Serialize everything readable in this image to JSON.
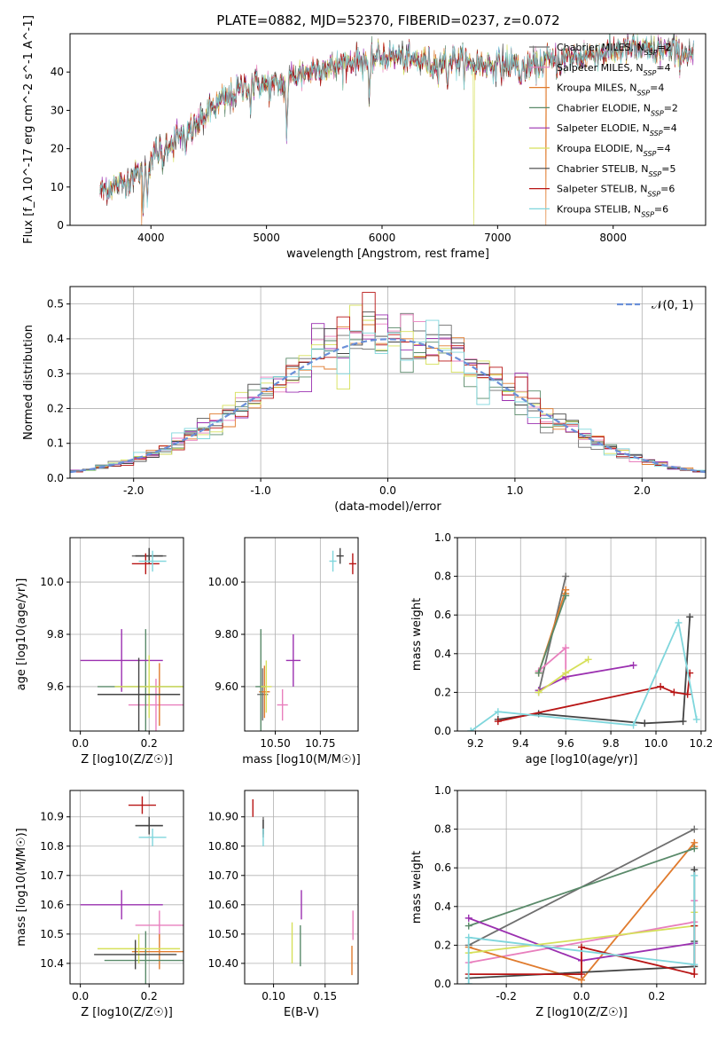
{
  "figure_title": "PLATE=0882, MJD=52370, FIBERID=0237, z=0.072",
  "models": [
    {
      "name": "Chabrier MILES, N",
      "sub": "SSP",
      "tail": "=2",
      "color": "#6f6f6f"
    },
    {
      "name": "Salpeter MILES, N",
      "sub": "SSP",
      "tail": "=4",
      "color": "#e87fbd"
    },
    {
      "name": "Kroupa MILES, N",
      "sub": "SSP",
      "tail": "=4",
      "color": "#e07b2e"
    },
    {
      "name": "Chabrier ELODIE, N",
      "sub": "SSP",
      "tail": "=2",
      "color": "#5a8a6a"
    },
    {
      "name": "Salpeter ELODIE, N",
      "sub": "SSP",
      "tail": "=4",
      "color": "#9b30b0"
    },
    {
      "name": "Kroupa ELODIE, N",
      "sub": "SSP",
      "tail": "=4",
      "color": "#d6e05a"
    },
    {
      "name": "Chabrier STELIB, N",
      "sub": "SSP",
      "tail": "=5",
      "color": "#444444"
    },
    {
      "name": "Salpeter STELIB, N",
      "sub": "SSP",
      "tail": "=6",
      "color": "#b81414"
    },
    {
      "name": "Kroupa STELIB, N",
      "sub": "SSP",
      "tail": "=6",
      "color": "#7fd6dc"
    }
  ],
  "chart_data": [
    {
      "id": "spectrum",
      "type": "line",
      "xlabel": "wavelength [Angstrom, rest frame]",
      "ylabel": "Flux [f_λ 10^-17 erg cm^-2 s^-1 A^-1]",
      "xlim": [
        3300,
        8800
      ],
      "ylim": [
        0,
        50
      ],
      "xticks": [
        4000,
        5000,
        6000,
        7000,
        8000
      ],
      "yticks": [
        0,
        10,
        20,
        30,
        40
      ],
      "grid": false,
      "legend": "right",
      "continuum": {
        "x": [
          3560,
          3650,
          3750,
          3850,
          3950,
          4050,
          4150,
          4250,
          4350,
          4450,
          4550,
          4650,
          4750,
          4850,
          4950,
          5050,
          5150,
          5250,
          5350,
          5450,
          5550,
          5650,
          5750,
          5850,
          5950,
          6050,
          6150,
          6250,
          6350,
          6450,
          6550,
          6650,
          6750,
          6850,
          6950,
          7050,
          7150,
          7250,
          7350,
          7450,
          7550,
          7650,
          7750,
          7850,
          7950,
          8050,
          8150,
          8250,
          8350,
          8450,
          8550,
          8650,
          8700
        ],
        "y": [
          9,
          10,
          11,
          13,
          15,
          19,
          21,
          23,
          25,
          28,
          31,
          33,
          35,
          37,
          37,
          36,
          37,
          39,
          40,
          41,
          41,
          42,
          43,
          43,
          44,
          44,
          44,
          43,
          43,
          42,
          43,
          43,
          42,
          42,
          42,
          42,
          42,
          41,
          42,
          43,
          43,
          44,
          44,
          45,
          45,
          46,
          46,
          46,
          45,
          46,
          45,
          45,
          45
        ]
      },
      "absorption_lines": [
        {
          "x": 3933,
          "depth": 0.6
        },
        {
          "x": 3968,
          "depth": 0.5
        },
        {
          "x": 4101,
          "depth": 0.25
        },
        {
          "x": 4300,
          "depth": 0.3
        },
        {
          "x": 4861,
          "depth": 0.15
        },
        {
          "x": 5175,
          "depth": 0.35
        },
        {
          "x": 5890,
          "depth": 0.3
        },
        {
          "x": 6563,
          "depth": 0.15
        },
        {
          "x": 7200,
          "depth": 0.12
        }
      ],
      "spikes": [
        {
          "x": 3920,
          "series": 2
        },
        {
          "x": 6795,
          "series": 5
        },
        {
          "x": 7420,
          "series": 2
        }
      ]
    },
    {
      "id": "residuals",
      "type": "line",
      "xlabel": "(data-model)/error",
      "ylabel": "Normed distribution",
      "xlim": [
        -2.5,
        2.5
      ],
      "ylim": [
        0,
        0.55
      ],
      "xticks": [
        -2,
        -1,
        0,
        1,
        2
      ],
      "yticks": [
        0,
        0.1,
        0.2,
        0.3,
        0.4,
        0.5
      ],
      "grid": true,
      "legend": "top-right",
      "gaussian_label": "𝒩(0, 1)",
      "gaussian_color": "#6a8fd8",
      "bin_width": 0.1
    },
    {
      "id": "age-z",
      "type": "scatter",
      "xlabel": "Z [log10(Z/Z☉)]",
      "ylabel": "age [log10(age/yr)]",
      "xlim": [
        -0.03,
        0.3
      ],
      "ylim": [
        9.43,
        10.17
      ],
      "xticks": [
        0.0,
        0.2
      ],
      "yticks": [
        9.6,
        9.8,
        10.0
      ],
      "grid": true,
      "points": [
        {
          "x": 0.2,
          "y": 10.1,
          "ex": 0.05,
          "ey": 0.03,
          "series": 0
        },
        {
          "x": 0.22,
          "y": 9.53,
          "ex": 0.08,
          "ey": 0.1,
          "series": 1
        },
        {
          "x": 0.23,
          "y": 9.57,
          "ex": 0.06,
          "ey": 0.12,
          "series": 2
        },
        {
          "x": 0.19,
          "y": 9.6,
          "ex": 0.14,
          "ey": 0.22,
          "series": 3
        },
        {
          "x": 0.12,
          "y": 9.7,
          "ex": 0.12,
          "ey": 0.12,
          "series": 4
        },
        {
          "x": 0.2,
          "y": 9.6,
          "ex": 0.1,
          "ey": 0.12,
          "series": 5
        },
        {
          "x": 0.2,
          "y": 10.1,
          "ex": 0.04,
          "ey": 0.03,
          "series": 6
        },
        {
          "x": 0.19,
          "y": 10.07,
          "ex": 0.04,
          "ey": 0.04,
          "series": 7
        },
        {
          "x": 0.21,
          "y": 10.08,
          "ex": 0.04,
          "ey": 0.04,
          "series": 8
        },
        {
          "x": 0.17,
          "y": 9.57,
          "ex": 0.12,
          "ey": 0.14,
          "series": 6
        }
      ]
    },
    {
      "id": "age-mass",
      "type": "scatter",
      "xlabel": "mass [log10(M/M☉)]",
      "ylabel": "",
      "xlim": [
        10.33,
        10.96
      ],
      "ylim": [
        9.43,
        10.17
      ],
      "xticks": [
        10.5,
        10.75
      ],
      "yticks": [
        9.6,
        9.8,
        10.0
      ],
      "grid": true,
      "points": [
        {
          "x": 10.43,
          "y": 9.57,
          "ex": 0.03,
          "ey": 0.1,
          "series": 0
        },
        {
          "x": 10.54,
          "y": 9.53,
          "ex": 0.03,
          "ey": 0.06,
          "series": 1
        },
        {
          "x": 10.44,
          "y": 9.58,
          "ex": 0.03,
          "ey": 0.1,
          "series": 2
        },
        {
          "x": 10.42,
          "y": 9.6,
          "ex": 0.03,
          "ey": 0.22,
          "series": 3
        },
        {
          "x": 10.6,
          "y": 9.7,
          "ex": 0.04,
          "ey": 0.1,
          "series": 4
        },
        {
          "x": 10.45,
          "y": 9.6,
          "ex": 0.03,
          "ey": 0.1,
          "series": 5
        },
        {
          "x": 10.86,
          "y": 10.1,
          "ex": 0.02,
          "ey": 0.03,
          "series": 6
        },
        {
          "x": 10.93,
          "y": 10.07,
          "ex": 0.02,
          "ey": 0.04,
          "series": 7
        },
        {
          "x": 10.82,
          "y": 10.08,
          "ex": 0.02,
          "ey": 0.04,
          "series": 8
        }
      ]
    },
    {
      "id": "weight-age",
      "type": "line",
      "xlabel": "age [log10(age/yr)]",
      "ylabel": "mass weight",
      "xlim": [
        9.12,
        10.22
      ],
      "ylim": [
        0,
        1.0
      ],
      "xticks": [
        9.2,
        9.4,
        9.6,
        9.8,
        10.0,
        10.2
      ],
      "yticks": [
        0.0,
        0.2,
        0.4,
        0.6,
        0.8,
        1.0
      ],
      "grid": true,
      "series": [
        {
          "series": 0,
          "x": [
            9.48,
            9.6
          ],
          "y": [
            0.2,
            0.8
          ]
        },
        {
          "series": 1,
          "x": [
            9.48,
            9.6,
            9.6
          ],
          "y": [
            0.31,
            0.43,
            0.27
          ]
        },
        {
          "series": 2,
          "x": [
            9.48,
            9.6,
            9.6
          ],
          "y": [
            0.3,
            0.73,
            0.71
          ]
        },
        {
          "series": 3,
          "x": [
            9.48,
            9.6
          ],
          "y": [
            0.3,
            0.7
          ]
        },
        {
          "series": 4,
          "x": [
            9.48,
            9.6,
            9.9
          ],
          "y": [
            0.21,
            0.28,
            0.34
          ]
        },
        {
          "series": 5,
          "x": [
            9.48,
            9.6,
            9.7
          ],
          "y": [
            0.2,
            0.3,
            0.37
          ]
        },
        {
          "series": 6,
          "x": [
            9.3,
            9.48,
            9.95,
            10.12,
            10.15
          ],
          "y": [
            0.06,
            0.09,
            0.04,
            0.05,
            0.59
          ]
        },
        {
          "series": 7,
          "x": [
            9.3,
            10.02,
            10.08,
            10.14,
            10.15
          ],
          "y": [
            0.05,
            0.23,
            0.2,
            0.19,
            0.3
          ]
        },
        {
          "series": 8,
          "x": [
            9.18,
            9.3,
            9.9,
            10.1,
            10.18
          ],
          "y": [
            0.0,
            0.1,
            0.03,
            0.56,
            0.06
          ]
        }
      ]
    },
    {
      "id": "mass-z",
      "type": "scatter",
      "xlabel": "Z [log10(Z/Z☉)]",
      "ylabel": "mass [log10(M/M☉)]",
      "xlim": [
        -0.03,
        0.3
      ],
      "ylim": [
        10.33,
        10.99
      ],
      "xticks": [
        0.0,
        0.2
      ],
      "yticks": [
        10.4,
        10.5,
        10.6,
        10.7,
        10.8,
        10.9
      ],
      "grid": true,
      "points": [
        {
          "x": 0.2,
          "y": 10.87,
          "ex": 0.04,
          "ey": 0.03,
          "series": 0
        },
        {
          "x": 0.23,
          "y": 10.53,
          "ex": 0.07,
          "ey": 0.05,
          "series": 1
        },
        {
          "x": 0.23,
          "y": 10.44,
          "ex": 0.08,
          "ey": 0.06,
          "series": 2
        },
        {
          "x": 0.19,
          "y": 10.41,
          "ex": 0.12,
          "ey": 0.1,
          "series": 3
        },
        {
          "x": 0.12,
          "y": 10.6,
          "ex": 0.12,
          "ey": 0.05,
          "series": 4
        },
        {
          "x": 0.17,
          "y": 10.45,
          "ex": 0.12,
          "ey": 0.05,
          "series": 5
        },
        {
          "x": 0.2,
          "y": 10.87,
          "ex": 0.04,
          "ey": 0.03,
          "series": 6
        },
        {
          "x": 0.18,
          "y": 10.94,
          "ex": 0.04,
          "ey": 0.03,
          "series": 7
        },
        {
          "x": 0.21,
          "y": 10.83,
          "ex": 0.04,
          "ey": 0.03,
          "series": 8
        },
        {
          "x": 0.16,
          "y": 10.43,
          "ex": 0.12,
          "ey": 0.05,
          "series": 6
        }
      ]
    },
    {
      "id": "mass-ebv",
      "type": "scatter",
      "xlabel": "E(B-V)",
      "ylabel": "",
      "xlim": [
        0.072,
        0.182
      ],
      "ylim": [
        10.33,
        10.99
      ],
      "xticks": [
        0.1,
        0.15
      ],
      "yticks": [
        10.4,
        10.5,
        10.6,
        10.7,
        10.8,
        10.9
      ],
      "grid": true,
      "points": [
        {
          "x": 0.09,
          "y": 10.87,
          "ex": 0.0,
          "ey": 0.03,
          "series": 0
        },
        {
          "x": 0.177,
          "y": 10.53,
          "ex": 0.0,
          "ey": 0.05,
          "series": 1
        },
        {
          "x": 0.176,
          "y": 10.41,
          "ex": 0.0,
          "ey": 0.05,
          "series": 2
        },
        {
          "x": 0.126,
          "y": 10.46,
          "ex": 0.0,
          "ey": 0.07,
          "series": 3
        },
        {
          "x": 0.127,
          "y": 10.6,
          "ex": 0.0,
          "ey": 0.05,
          "series": 4
        },
        {
          "x": 0.118,
          "y": 10.47,
          "ex": 0.0,
          "ey": 0.07,
          "series": 5
        },
        {
          "x": 0.09,
          "y": 10.86,
          "ex": 0.0,
          "ey": 0.03,
          "series": 6
        },
        {
          "x": 0.08,
          "y": 10.93,
          "ex": 0.0,
          "ey": 0.03,
          "series": 7
        },
        {
          "x": 0.09,
          "y": 10.83,
          "ex": 0.0,
          "ey": 0.03,
          "series": 8
        }
      ]
    },
    {
      "id": "weight-z",
      "type": "line",
      "xlabel": "Z [log10(Z/Z☉)]",
      "ylabel": "mass weight",
      "xlim": [
        -0.33,
        0.33
      ],
      "ylim": [
        0,
        1.0
      ],
      "xticks": [
        -0.2,
        0.0,
        0.2
      ],
      "yticks": [
        0.0,
        0.2,
        0.4,
        0.6,
        0.8,
        1.0
      ],
      "grid": true,
      "series": [
        {
          "series": 0,
          "x": [
            -0.3,
            0.3
          ],
          "y": [
            0.2,
            0.8
          ]
        },
        {
          "series": 1,
          "x": [
            -0.3,
            0.3,
            0.3
          ],
          "y": [
            0.11,
            0.32,
            0.43
          ]
        },
        {
          "series": 2,
          "x": [
            -0.3,
            0.0,
            0.3,
            0.3
          ],
          "y": [
            0.19,
            0.02,
            0.73,
            0.71
          ]
        },
        {
          "series": 3,
          "x": [
            -0.3,
            0.3
          ],
          "y": [
            0.3,
            0.7
          ]
        },
        {
          "series": 4,
          "x": [
            -0.3,
            0.0,
            0.3
          ],
          "y": [
            0.34,
            0.12,
            0.21
          ]
        },
        {
          "series": 5,
          "x": [
            -0.3,
            0.3,
            0.3
          ],
          "y": [
            0.16,
            0.3,
            0.37
          ]
        },
        {
          "series": 6,
          "x": [
            -0.3,
            0.3,
            0.3,
            0.3
          ],
          "y": [
            0.03,
            0.09,
            0.59,
            0.22
          ]
        },
        {
          "series": 7,
          "x": [
            -0.3,
            0.0,
            0.0,
            0.3,
            0.3
          ],
          "y": [
            0.05,
            0.05,
            0.19,
            0.05,
            0.3
          ]
        },
        {
          "series": 8,
          "x": [
            -0.3,
            -0.3,
            0.3,
            0.3
          ],
          "y": [
            0.0,
            0.24,
            0.1,
            0.56
          ]
        }
      ]
    }
  ]
}
